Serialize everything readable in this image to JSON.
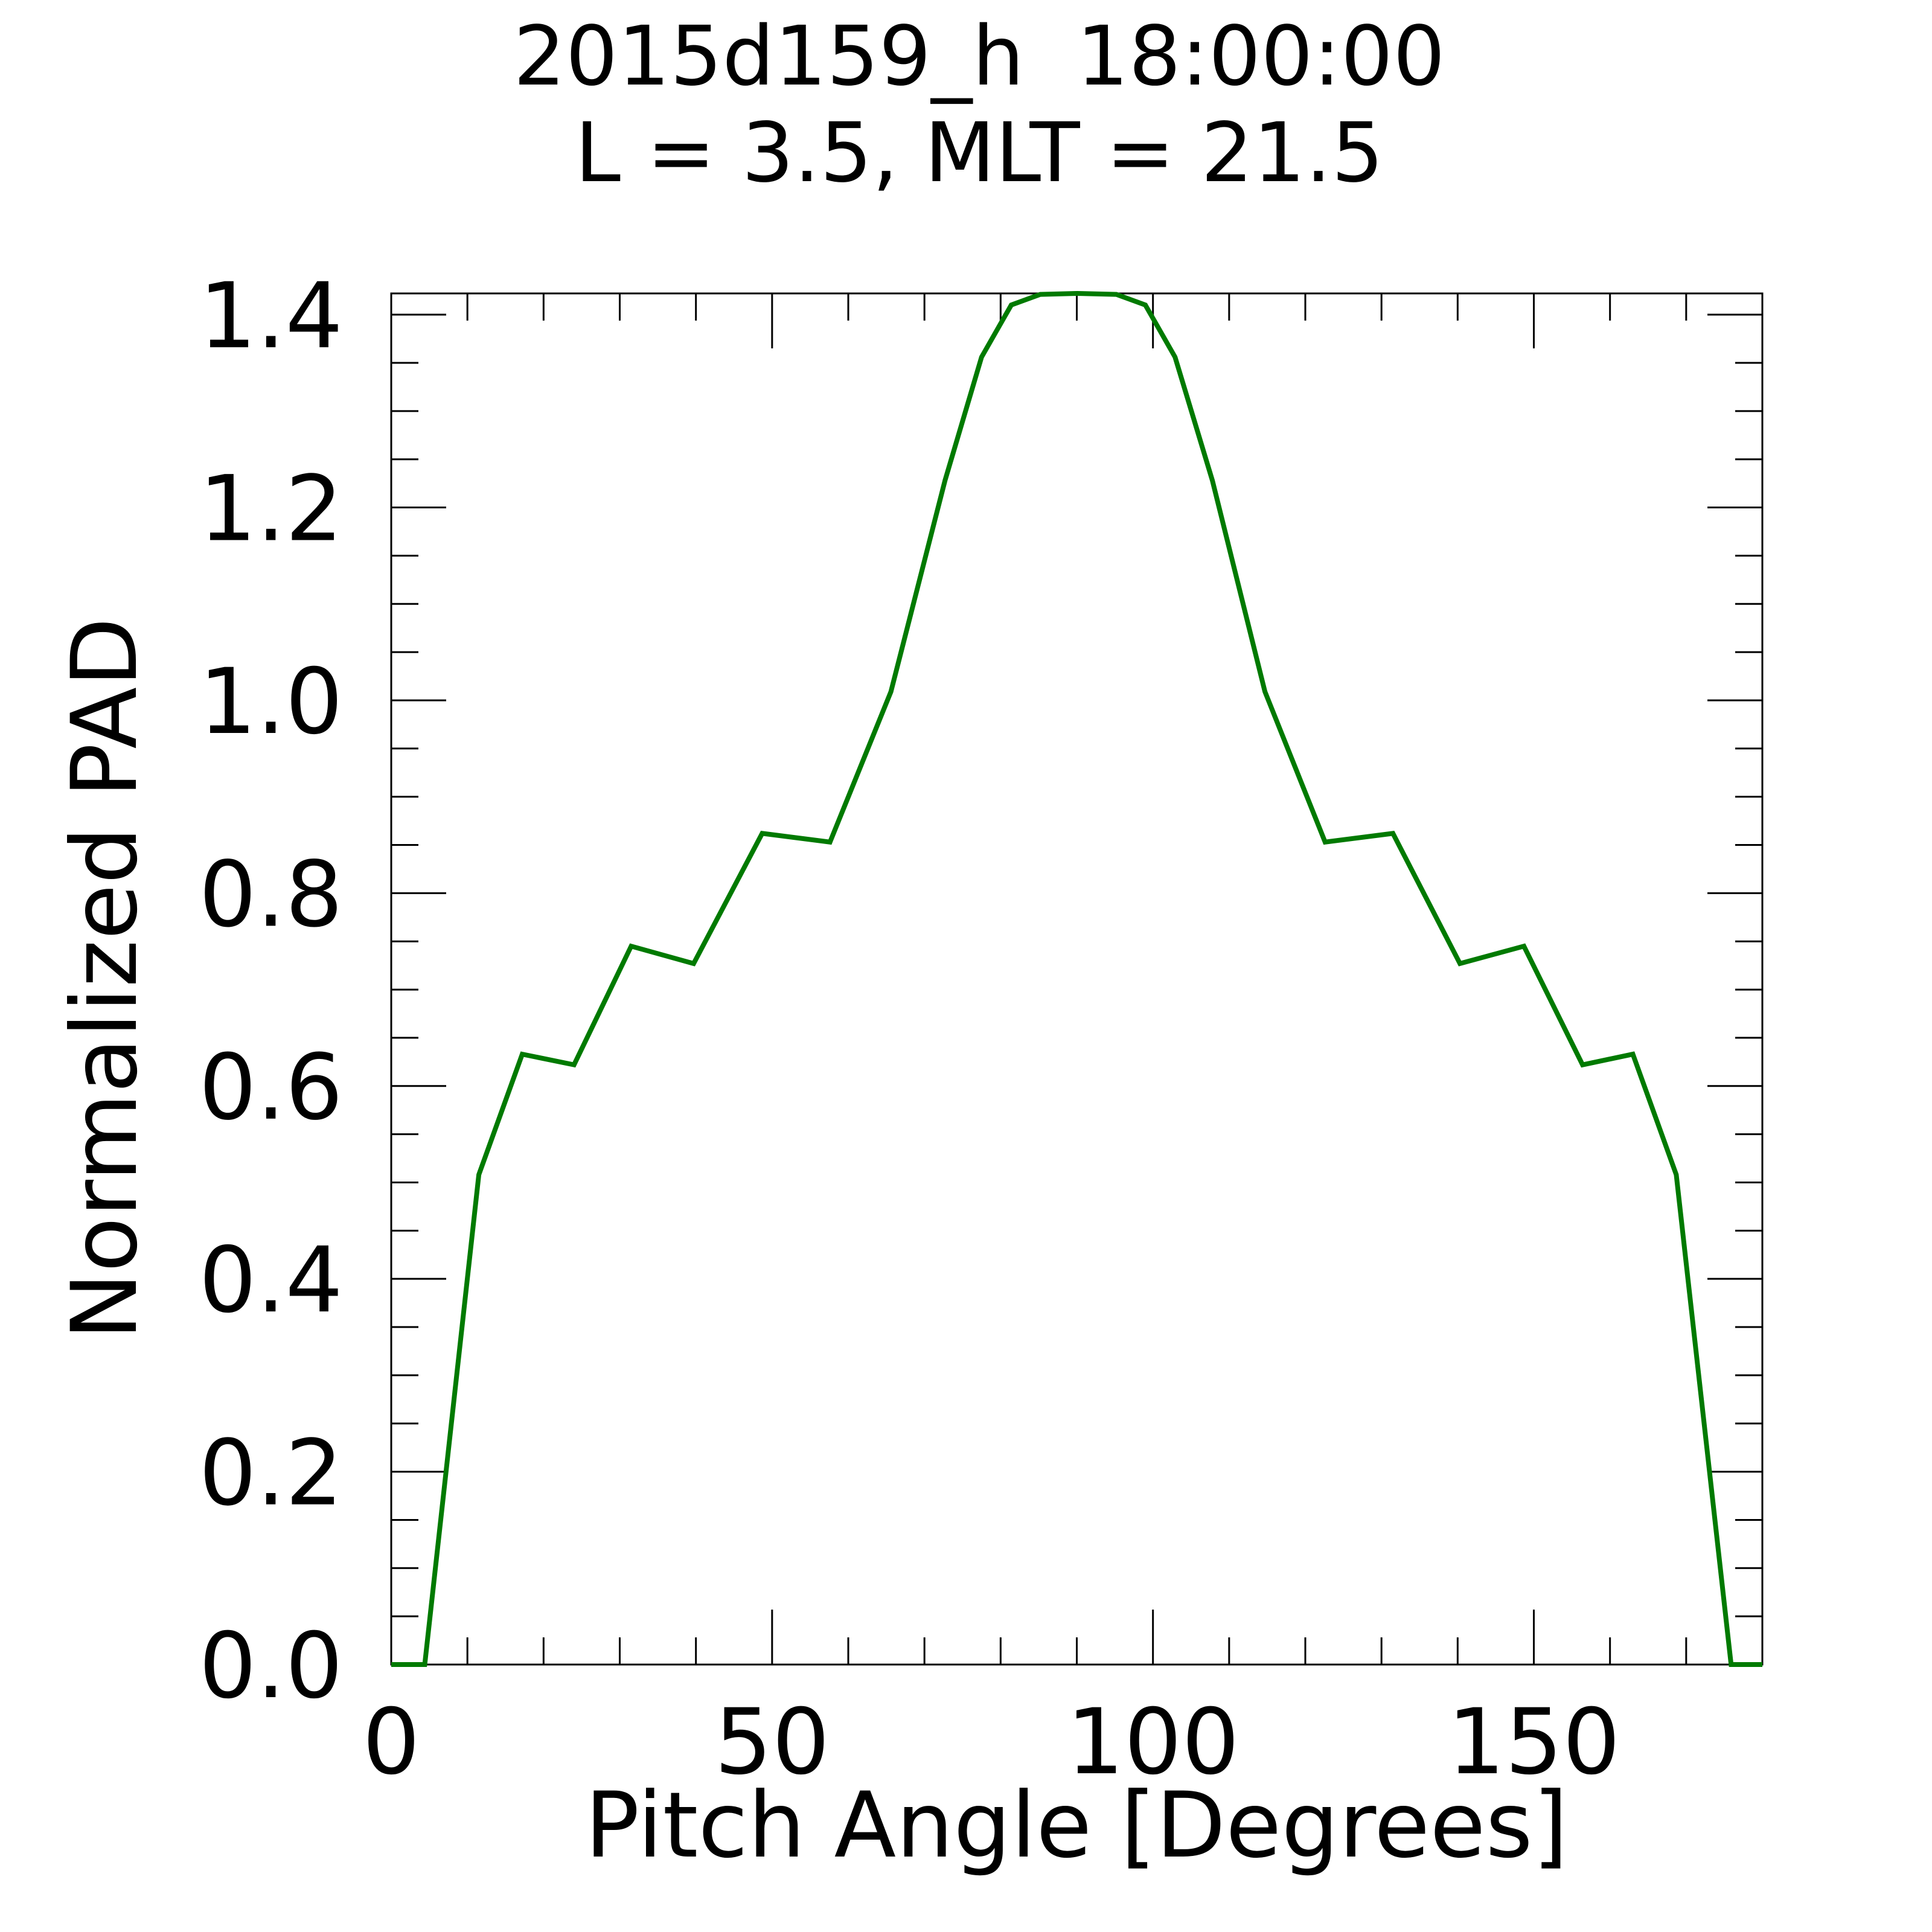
{
  "chart_data": {
    "type": "line",
    "title": [
      "2015d159_h  18:00:00",
      "L = 3.5, MLT = 21.5"
    ],
    "x_label": "Pitch Angle [Degrees]",
    "y_label": "Normalized PAD",
    "x": [
      0,
      4.4,
      11.5,
      17.2,
      24.0,
      31.5,
      39.7,
      48.7,
      57.6,
      65.6,
      72.7,
      77.5,
      81.4,
      85.2,
      90.1,
      95.2,
      99.0,
      102.9,
      107.8,
      114.7,
      122.6,
      131.5,
      140.3,
      148.7,
      156.4,
      163.0,
      168.7,
      175.9,
      180
    ],
    "series": [
      {
        "name": "PAD",
        "color": "#007a00",
        "values": [
          0,
          0,
          0.508,
          0.633,
          0.622,
          0.745,
          0.727,
          0.862,
          0.853,
          1.009,
          1.228,
          1.356,
          1.41,
          1.421,
          1.422,
          1.421,
          1.41,
          1.356,
          1.228,
          1.009,
          0.853,
          0.862,
          0.727,
          0.745,
          0.622,
          0.633,
          0.508,
          0,
          0
        ]
      }
    ],
    "xlim": [
      0,
      180
    ],
    "ylim": [
      0,
      1.422
    ],
    "xticks": [
      0,
      50,
      100,
      150
    ],
    "yticks": [
      {
        "value": 0,
        "label": "0.0"
      },
      {
        "value": 0.2,
        "label": "0.2"
      },
      {
        "value": 0.4,
        "label": "0.4"
      },
      {
        "value": 0.6,
        "label": "0.6"
      },
      {
        "value": 0.8,
        "label": "0.8"
      },
      {
        "value": 1.0,
        "label": "1.0"
      },
      {
        "value": 1.2,
        "label": "1.2"
      },
      {
        "value": 1.4,
        "label": "1.4"
      }
    ],
    "xminorticks": [
      10,
      20,
      30,
      40,
      60,
      70,
      80,
      90,
      110,
      120,
      130,
      140,
      160,
      170
    ],
    "yminorticks": [
      0.05,
      0.1,
      0.15,
      0.25,
      0.3,
      0.35,
      0.45,
      0.5,
      0.55,
      0.65,
      0.7,
      0.75,
      0.85,
      0.9,
      0.95,
      1.05,
      1.1,
      1.15,
      1.25,
      1.3,
      1.35
    ],
    "grid": false
  }
}
